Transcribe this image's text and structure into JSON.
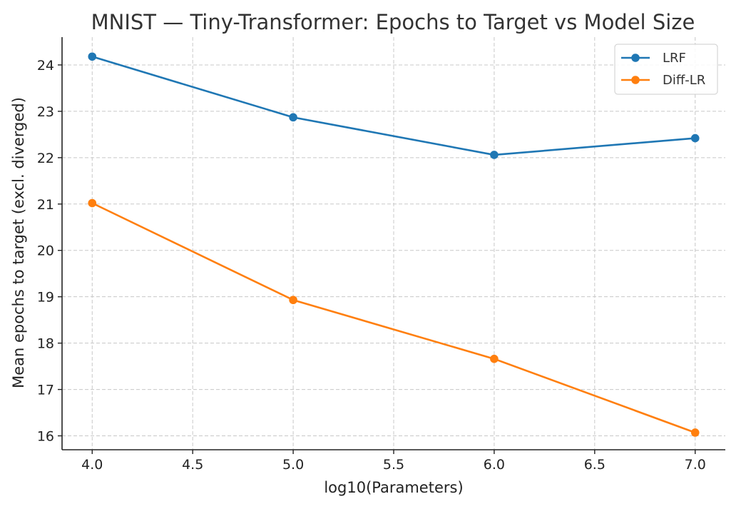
{
  "chart_data": {
    "type": "line",
    "title": "MNIST — Tiny-Transformer: Epochs to Target vs Model Size",
    "xlabel": "log10(Parameters)",
    "ylabel": "Mean epochs to target (excl. diverged)",
    "x": [
      4.0,
      5.0,
      6.0,
      7.0
    ],
    "xlim": [
      3.85,
      7.15
    ],
    "ylim": [
      15.7,
      24.6
    ],
    "xticks": [
      4.0,
      4.5,
      5.0,
      5.5,
      6.0,
      6.5,
      7.0
    ],
    "xtick_labels": [
      "4.0",
      "4.5",
      "5.0",
      "5.5",
      "6.0",
      "6.5",
      "7.0"
    ],
    "yticks": [
      16,
      17,
      18,
      19,
      20,
      21,
      22,
      23,
      24
    ],
    "ytick_labels": [
      "16",
      "17",
      "18",
      "19",
      "20",
      "21",
      "22",
      "23",
      "24"
    ],
    "grid": true,
    "legend_position": "top-right",
    "series": [
      {
        "name": "LRF",
        "color": "#1f77b4",
        "marker": "circle",
        "values": [
          24.18,
          22.87,
          22.06,
          22.42
        ]
      },
      {
        "name": "Diff-LR",
        "color": "#ff7f0e",
        "marker": "circle",
        "values": [
          21.02,
          18.93,
          17.66,
          16.07
        ]
      }
    ]
  }
}
